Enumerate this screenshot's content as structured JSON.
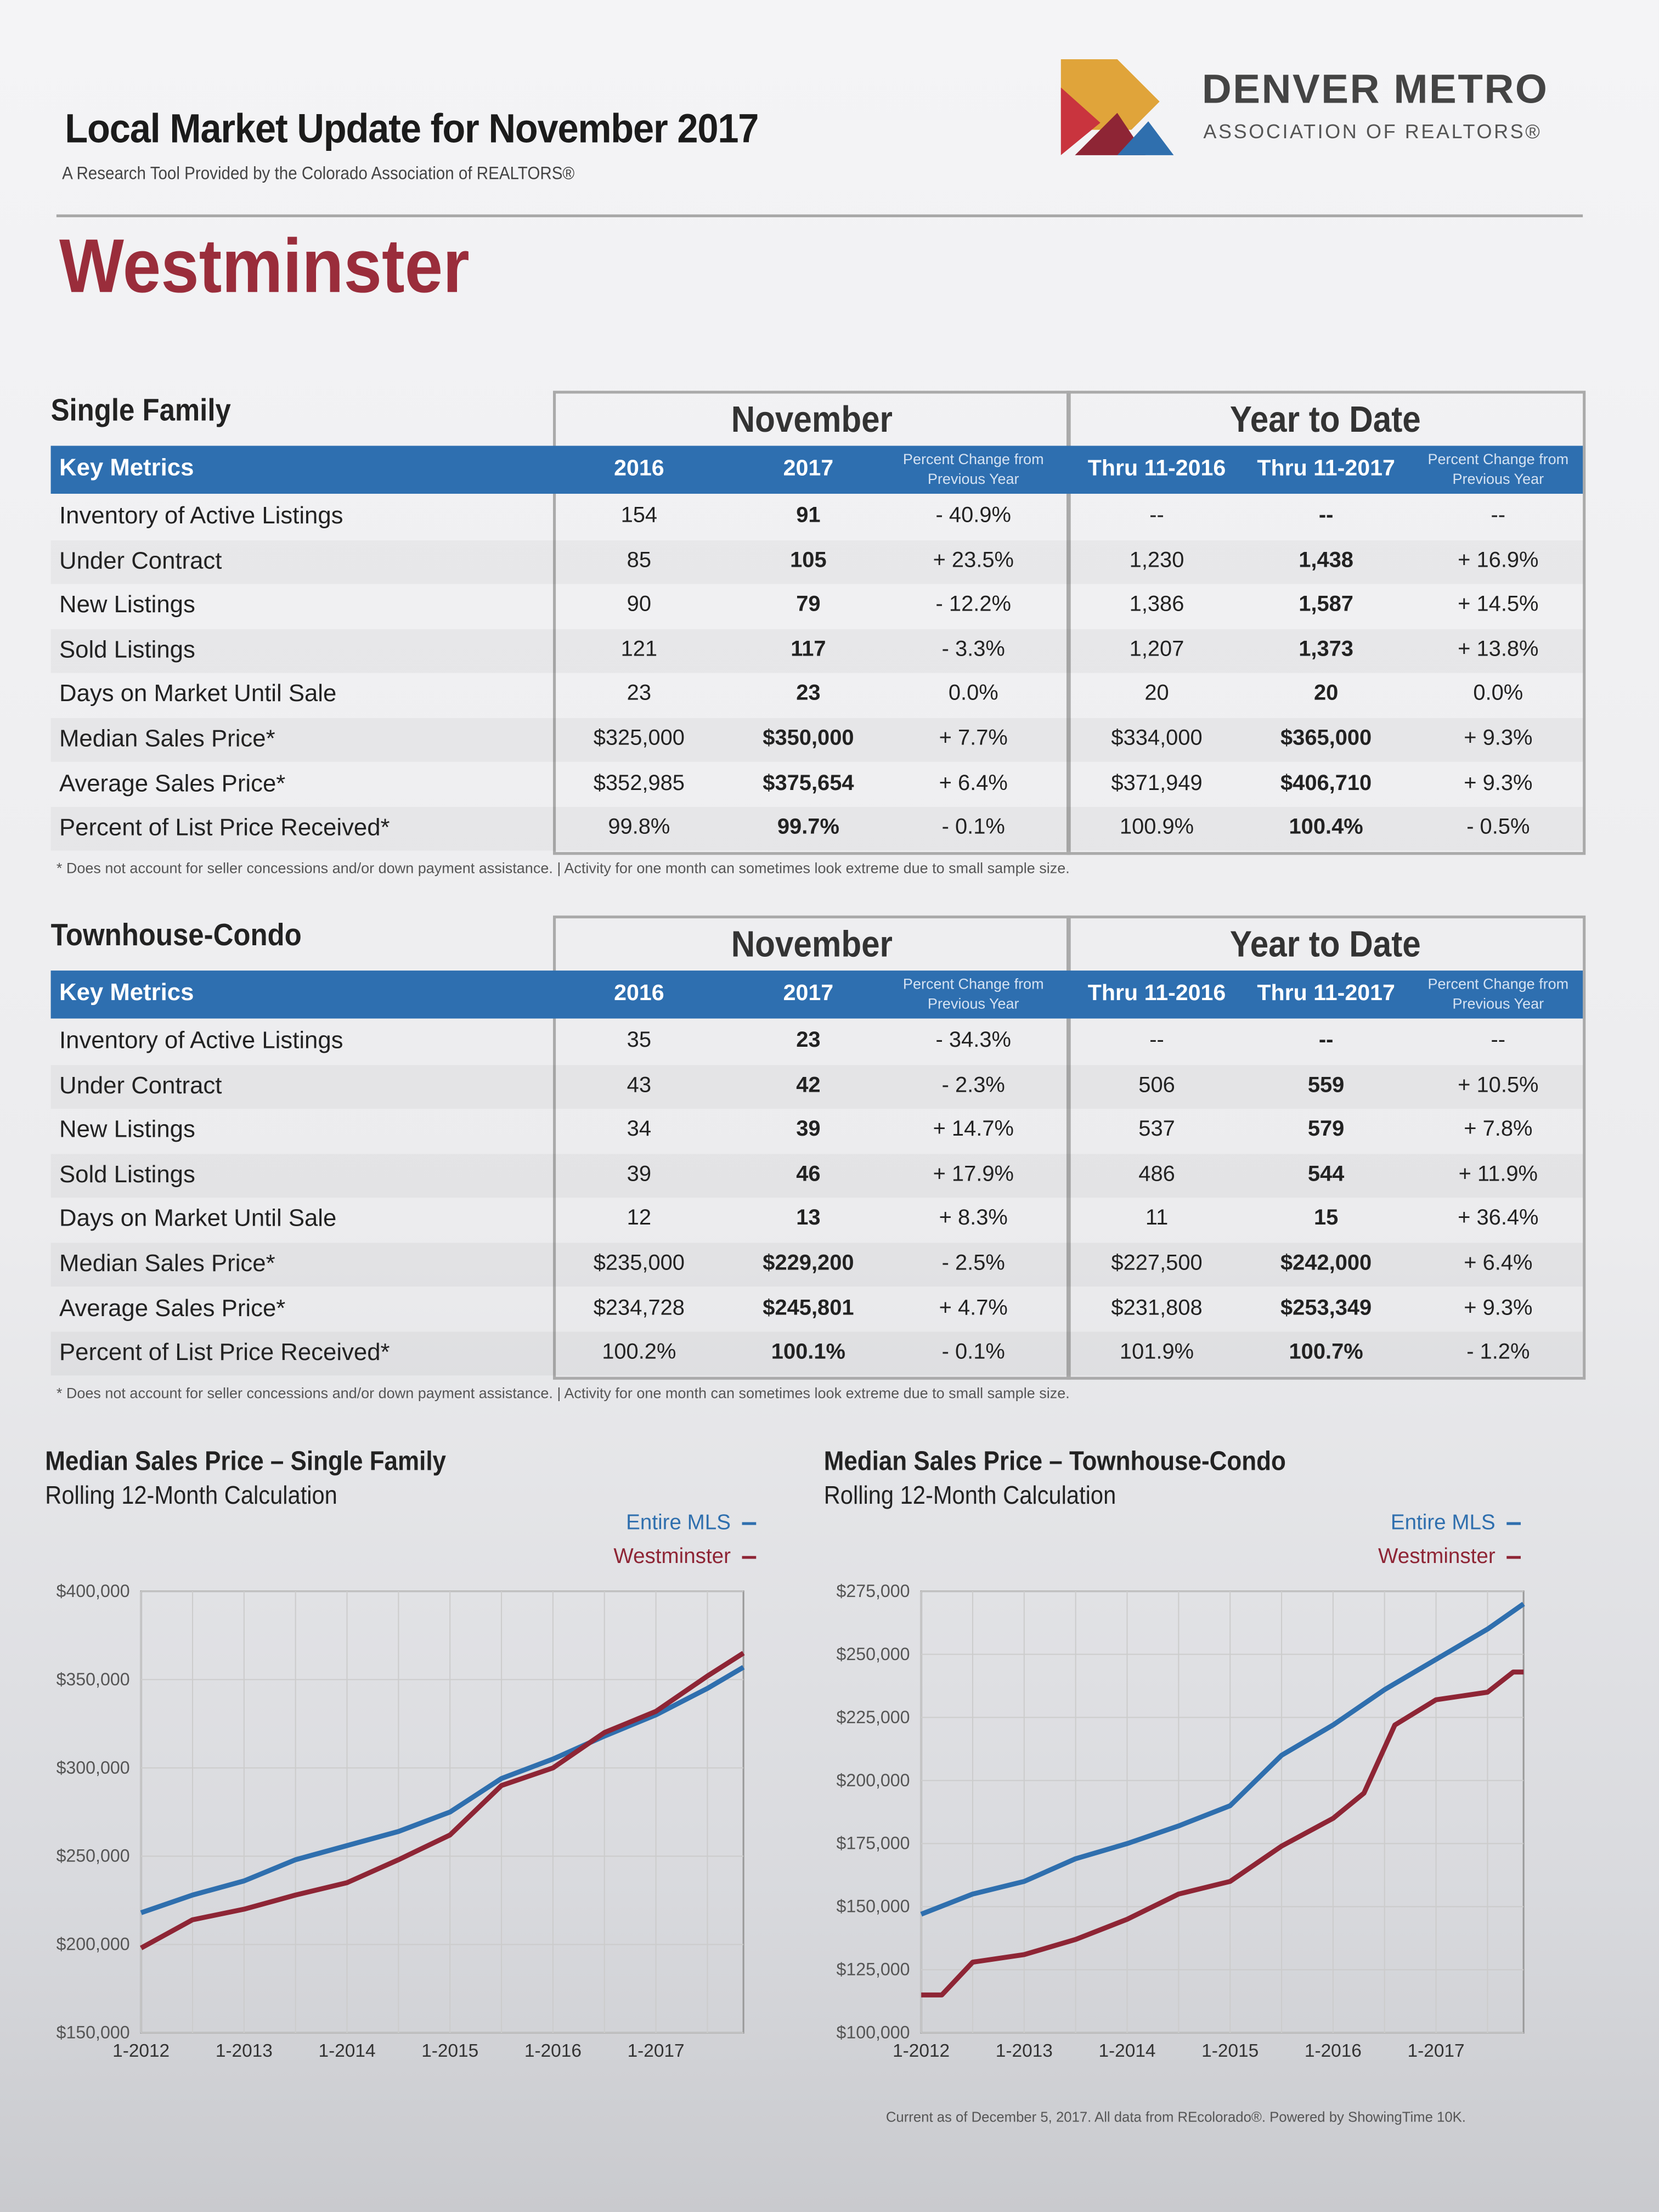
{
  "header": {
    "title": "Local Market Update for November 2017",
    "subtitle": "A Research Tool Provided by the Colorado Association of REALTORS®",
    "city": "Westminster",
    "logo_line1": "DENVER METRO",
    "logo_line2": "ASSOCIATION OF REALTORS®"
  },
  "columns": {
    "key_metrics": "Key Metrics",
    "group_month": "November",
    "group_ytd": "Year to Date",
    "c2016": "2016",
    "c2017": "2017",
    "pct": "Percent Change from Previous Year",
    "ytd2016": "Thru 11-2016",
    "ytd2017": "Thru 11-2017"
  },
  "tables": [
    {
      "title": "Single Family",
      "rows": [
        [
          "Inventory of Active Listings",
          "154",
          "91",
          "- 40.9%",
          "--",
          "--",
          "--"
        ],
        [
          "Under Contract",
          "85",
          "105",
          "+ 23.5%",
          "1,230",
          "1,438",
          "+ 16.9%"
        ],
        [
          "New Listings",
          "90",
          "79",
          "- 12.2%",
          "1,386",
          "1,587",
          "+ 14.5%"
        ],
        [
          "Sold Listings",
          "121",
          "117",
          "- 3.3%",
          "1,207",
          "1,373",
          "+ 13.8%"
        ],
        [
          "Days on Market Until Sale",
          "23",
          "23",
          "0.0%",
          "20",
          "20",
          "0.0%"
        ],
        [
          "Median Sales Price*",
          "$325,000",
          "$350,000",
          "+ 7.7%",
          "$334,000",
          "$365,000",
          "+ 9.3%"
        ],
        [
          "Average Sales Price*",
          "$352,985",
          "$375,654",
          "+ 6.4%",
          "$371,949",
          "$406,710",
          "+ 9.3%"
        ],
        [
          "Percent of List Price Received*",
          "99.8%",
          "99.7%",
          "- 0.1%",
          "100.9%",
          "100.4%",
          "- 0.5%"
        ]
      ]
    },
    {
      "title": "Townhouse-Condo",
      "rows": [
        [
          "Inventory of Active Listings",
          "35",
          "23",
          "- 34.3%",
          "--",
          "--",
          "--"
        ],
        [
          "Under Contract",
          "43",
          "42",
          "- 2.3%",
          "506",
          "559",
          "+ 10.5%"
        ],
        [
          "New Listings",
          "34",
          "39",
          "+ 14.7%",
          "537",
          "579",
          "+ 7.8%"
        ],
        [
          "Sold Listings",
          "39",
          "46",
          "+ 17.9%",
          "486",
          "544",
          "+ 11.9%"
        ],
        [
          "Days on Market Until Sale",
          "12",
          "13",
          "+ 8.3%",
          "11",
          "15",
          "+ 36.4%"
        ],
        [
          "Median Sales Price*",
          "$235,000",
          "$229,200",
          "- 2.5%",
          "$227,500",
          "$242,000",
          "+ 6.4%"
        ],
        [
          "Average Sales Price*",
          "$234,728",
          "$245,801",
          "+ 4.7%",
          "$231,808",
          "$253,349",
          "+ 9.3%"
        ],
        [
          "Percent of List Price Received*",
          "100.2%",
          "100.1%",
          "- 0.1%",
          "101.9%",
          "100.7%",
          "- 1.2%"
        ]
      ]
    }
  ],
  "footnote": "* Does not account for seller concessions and/or down payment assistance.  |  Activity for one month can sometimes look extreme due to small sample size.",
  "footer": "Current as of December 5, 2017. All data from REcolorado®. Powered by ShowingTime 10K.",
  "colors": {
    "entire_mls": "#2f6fae",
    "westminster": "#8e2535",
    "header_bar": "#2e6fb0"
  },
  "chart_data": [
    {
      "type": "line",
      "title": "Median Sales Price – Single Family",
      "subtitle": "Rolling 12-Month Calculation",
      "ylim": [
        150000,
        400000
      ],
      "yticks": [
        150000,
        200000,
        250000,
        300000,
        350000,
        400000
      ],
      "ytick_labels": [
        "$150,000",
        "$200,000",
        "$250,000",
        "$300,000",
        "$350,000",
        "$400,000"
      ],
      "xlim": [
        2012,
        2017.85
      ],
      "xticks": [
        2012,
        2013,
        2014,
        2015,
        2016,
        2017
      ],
      "xtick_labels": [
        "1-2012",
        "1-2013",
        "1-2014",
        "1-2015",
        "1-2016",
        "1-2017"
      ],
      "legend": "top-right",
      "grid": true,
      "series": [
        {
          "name": "Entire MLS",
          "color": "#2f6fae",
          "x": [
            2012,
            2012.5,
            2013,
            2013.5,
            2014,
            2014.5,
            2015,
            2015.5,
            2016,
            2016.5,
            2017,
            2017.5,
            2017.85
          ],
          "y": [
            218000,
            228000,
            236000,
            248000,
            256000,
            264000,
            275000,
            294000,
            305000,
            318000,
            330000,
            345000,
            357000
          ]
        },
        {
          "name": "Westminster",
          "color": "#8e2535",
          "x": [
            2012,
            2012.5,
            2013,
            2013.5,
            2014,
            2014.5,
            2015,
            2015.5,
            2016,
            2016.5,
            2017,
            2017.5,
            2017.85
          ],
          "y": [
            198000,
            214000,
            220000,
            228000,
            235000,
            248000,
            262000,
            290000,
            300000,
            320000,
            332000,
            352000,
            365000
          ]
        }
      ]
    },
    {
      "type": "line",
      "title": "Median Sales Price – Townhouse-Condo",
      "subtitle": "Rolling 12-Month Calculation",
      "ylim": [
        100000,
        275000
      ],
      "yticks": [
        100000,
        125000,
        150000,
        175000,
        200000,
        225000,
        250000,
        275000
      ],
      "ytick_labels": [
        "$100,000",
        "$125,000",
        "$150,000",
        "$175,000",
        "$200,000",
        "$225,000",
        "$250,000",
        "$275,000"
      ],
      "xlim": [
        2012,
        2017.85
      ],
      "xticks": [
        2012,
        2013,
        2014,
        2015,
        2016,
        2017
      ],
      "xtick_labels": [
        "1-2012",
        "1-2013",
        "1-2014",
        "1-2015",
        "1-2016",
        "1-2017"
      ],
      "legend": "top-right",
      "grid": true,
      "series": [
        {
          "name": "Entire MLS",
          "color": "#2f6fae",
          "x": [
            2012,
            2012.5,
            2013,
            2013.5,
            2014,
            2014.5,
            2015,
            2015.5,
            2016,
            2016.5,
            2017,
            2017.5,
            2017.85
          ],
          "y": [
            147000,
            155000,
            160000,
            169000,
            175000,
            182000,
            190000,
            210000,
            222000,
            236000,
            248000,
            260000,
            270000
          ]
        },
        {
          "name": "Westminster",
          "color": "#8e2535",
          "x": [
            2012,
            2012.2,
            2012.5,
            2013,
            2013.5,
            2014,
            2014.5,
            2015,
            2015.5,
            2016,
            2016.3,
            2016.6,
            2017,
            2017.5,
            2017.75,
            2017.85
          ],
          "y": [
            115000,
            115000,
            128000,
            131000,
            137000,
            145000,
            155000,
            160000,
            174000,
            185000,
            195000,
            222000,
            232000,
            235000,
            243000,
            243000
          ]
        }
      ]
    }
  ]
}
